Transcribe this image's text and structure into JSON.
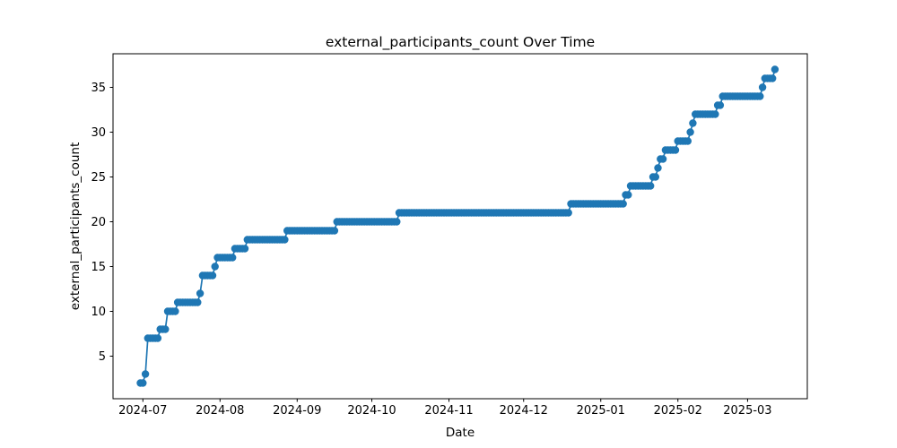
{
  "chart_data": {
    "type": "line",
    "title": "external_participants_count Over Time",
    "xlabel": "Date",
    "ylabel": "external_participants_count",
    "series_name": "external_participants_count",
    "line_color": "#1f77b4",
    "marker": "circle",
    "marker_radius": 4.2,
    "grid": false,
    "legend": "none",
    "xlim": [
      "2024-06-19",
      "2025-03-25"
    ],
    "ylim": [
      0.25,
      38.75
    ],
    "x_ticks": [
      {
        "date": "2024-07-01",
        "label": "2024-07"
      },
      {
        "date": "2024-08-01",
        "label": "2024-08"
      },
      {
        "date": "2024-09-01",
        "label": "2024-09"
      },
      {
        "date": "2024-10-01",
        "label": "2024-10"
      },
      {
        "date": "2024-11-01",
        "label": "2024-11"
      },
      {
        "date": "2024-12-01",
        "label": "2024-12"
      },
      {
        "date": "2025-01-01",
        "label": "2025-01"
      },
      {
        "date": "2025-02-01",
        "label": "2025-02"
      },
      {
        "date": "2025-03-01",
        "label": "2025-03"
      }
    ],
    "y_ticks": [
      5,
      10,
      15,
      20,
      25,
      30,
      35
    ],
    "point_frequency": "daily",
    "step_changes": [
      {
        "date": "2024-06-30",
        "value": 2
      },
      {
        "date": "2024-07-02",
        "value": 3
      },
      {
        "date": "2024-07-03",
        "value": 7
      },
      {
        "date": "2024-07-08",
        "value": 8
      },
      {
        "date": "2024-07-11",
        "value": 10
      },
      {
        "date": "2024-07-15",
        "value": 11
      },
      {
        "date": "2024-07-24",
        "value": 12
      },
      {
        "date": "2024-07-25",
        "value": 14
      },
      {
        "date": "2024-07-30",
        "value": 15
      },
      {
        "date": "2024-07-31",
        "value": 16
      },
      {
        "date": "2024-08-07",
        "value": 17
      },
      {
        "date": "2024-08-12",
        "value": 18
      },
      {
        "date": "2024-08-28",
        "value": 19
      },
      {
        "date": "2024-09-17",
        "value": 20
      },
      {
        "date": "2024-10-12",
        "value": 21
      },
      {
        "date": "2024-12-20",
        "value": 22
      },
      {
        "date": "2025-01-11",
        "value": 23
      },
      {
        "date": "2025-01-13",
        "value": 24
      },
      {
        "date": "2025-01-22",
        "value": 25
      },
      {
        "date": "2025-01-24",
        "value": 26
      },
      {
        "date": "2025-01-25",
        "value": 27
      },
      {
        "date": "2025-01-27",
        "value": 28
      },
      {
        "date": "2025-02-01",
        "value": 29
      },
      {
        "date": "2025-02-06",
        "value": 30
      },
      {
        "date": "2025-02-07",
        "value": 31
      },
      {
        "date": "2025-02-08",
        "value": 32
      },
      {
        "date": "2025-02-17",
        "value": 33
      },
      {
        "date": "2025-02-19",
        "value": 34
      },
      {
        "date": "2025-03-07",
        "value": 35
      },
      {
        "date": "2025-03-08",
        "value": 36
      },
      {
        "date": "2025-03-12",
        "value": 37
      }
    ]
  }
}
